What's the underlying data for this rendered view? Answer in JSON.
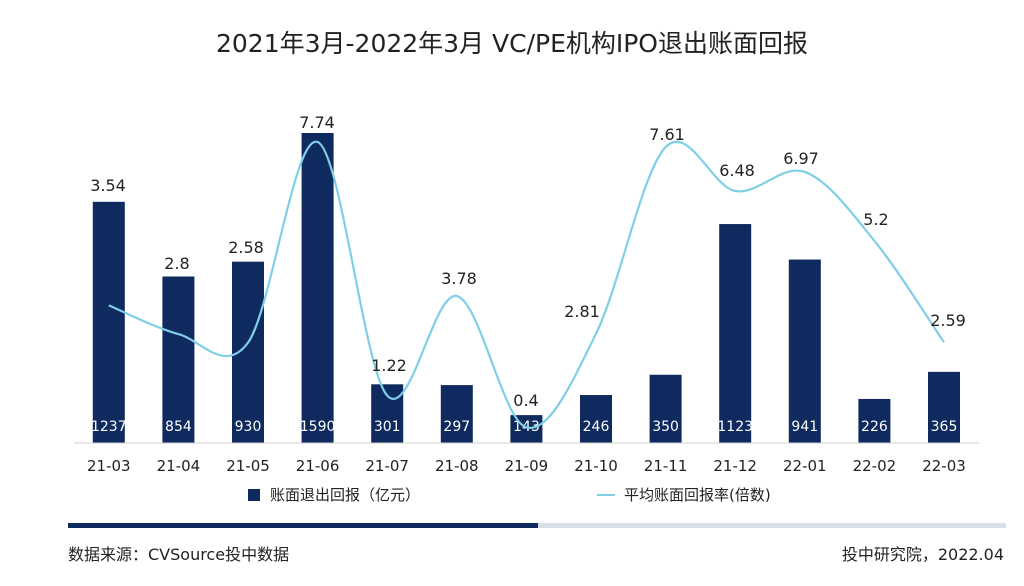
{
  "chart_data": {
    "type": "bar",
    "title": "2021年3月-2022年3月 VC/PE机构IPO退出账面回报",
    "categories": [
      "21-03",
      "21-04",
      "21-05",
      "21-06",
      "21-07",
      "21-08",
      "21-09",
      "21-10",
      "21-11",
      "21-12",
      "22-01",
      "22-02",
      "22-03"
    ],
    "series": [
      {
        "name": "账面退出回报（亿元）",
        "type": "bar",
        "color": "#0f2a5e",
        "values": [
          1237,
          854,
          930,
          1590,
          301,
          297,
          143,
          246,
          350,
          1123,
          941,
          226,
          365
        ],
        "labels": [
          "1237",
          "854",
          "930",
          "1590",
          "301",
          "297",
          "143",
          "246",
          "350",
          "1123",
          "941",
          "226",
          "365"
        ]
      },
      {
        "name": "平均账面回报率(倍数)",
        "type": "line",
        "color": "#7fd0e6",
        "values": [
          3.54,
          2.8,
          2.58,
          7.74,
          1.22,
          3.78,
          0.4,
          2.81,
          7.61,
          6.48,
          6.97,
          5.2,
          2.59
        ],
        "labels": [
          "3.54",
          "2.8",
          "2.58",
          "7.74",
          "1.22",
          "3.78",
          "0.4",
          "2.81",
          "7.61",
          "6.48",
          "6.97",
          "5.2",
          "2.59"
        ]
      }
    ],
    "bar_ylim": [
      0,
      1700
    ],
    "line_ylim": [
      0,
      8.5
    ],
    "grid": false,
    "legend_position": "bottom"
  },
  "footer": {
    "source": "数据来源：CVSource投中数据",
    "credit": "投中研究院，2022.04"
  },
  "colors": {
    "bar": "#0f2a5e",
    "line": "#7fd0e6",
    "progress_dark": "#0f2a5e",
    "progress_light": "#d9dfe8"
  }
}
